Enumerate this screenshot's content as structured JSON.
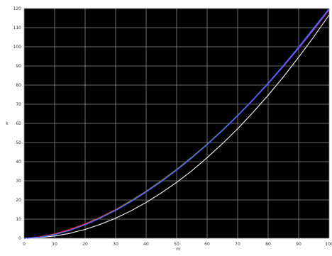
{
  "chart_data": {
    "type": "line",
    "title": "",
    "xlabel": "m",
    "ylabel": "k",
    "xlim": [
      0,
      100
    ],
    "ylim": [
      0,
      120
    ],
    "x_ticks": [
      0,
      10,
      20,
      30,
      40,
      50,
      60,
      70,
      80,
      90,
      100
    ],
    "y_ticks": [
      0,
      10,
      20,
      30,
      40,
      50,
      60,
      70,
      80,
      90,
      100,
      110,
      120
    ],
    "x_tick_labels": [
      "0",
      "10",
      "20",
      "30",
      "40",
      "50",
      "60",
      "70",
      "80",
      "90",
      "100"
    ],
    "y_tick_labels": [
      "0",
      "10",
      "20",
      "30",
      "40",
      "50",
      "60",
      "70",
      "80",
      "90",
      "100",
      "110",
      "120"
    ],
    "grid": true,
    "background": "#000000",
    "gridline_color": "#8a8a8a",
    "x": [
      0,
      5,
      10,
      15,
      20,
      25,
      30,
      35,
      40,
      45,
      50,
      55,
      60,
      65,
      70,
      75,
      80,
      85,
      90,
      95,
      100
    ],
    "series": [
      {
        "color": "#e8e8e8",
        "values": [
          0,
          0.3,
          1.2,
          2.6,
          4.6,
          7.3,
          10.5,
          14.3,
          18.7,
          23.7,
          29.2,
          35.3,
          42.1,
          49.4,
          57.2,
          65.7,
          74.7,
          84.3,
          94.6,
          105.3,
          116.7
        ]
      },
      {
        "color": "#2ecc40",
        "values": [
          0,
          0.6,
          2.2,
          4.5,
          7.5,
          11,
          15,
          19.6,
          24.6,
          30.1,
          36,
          42.4,
          49.2,
          56.5,
          64.2,
          72.4,
          81,
          90.1,
          99.6,
          109.5,
          119.8
        ]
      },
      {
        "color": "#ff3333",
        "values": [
          0,
          0.7,
          2.3,
          4.6,
          7.5,
          10.9,
          14.9,
          19.4,
          24.4,
          29.9,
          35.8,
          42.2,
          49,
          56.3,
          64,
          72.2,
          80.8,
          89.8,
          99.2,
          109.1,
          119.3
        ]
      },
      {
        "color": "#8e44ff",
        "values": [
          0,
          0.5,
          2,
          4.2,
          7.1,
          10.6,
          14.6,
          19.2,
          24.2,
          29.7,
          35.6,
          42,
          48.9,
          56.2,
          63.9,
          72.1,
          80.7,
          89.8,
          99.3,
          109.2,
          119.6
        ]
      },
      {
        "color": "#3a6bff",
        "values": [
          0,
          0.5,
          1.9,
          4.1,
          7,
          10.5,
          14.5,
          19.1,
          24.1,
          29.6,
          35.6,
          42,
          48.9,
          56.3,
          64.1,
          72.4,
          81.1,
          90.3,
          99.9,
          110,
          120
        ]
      }
    ]
  }
}
